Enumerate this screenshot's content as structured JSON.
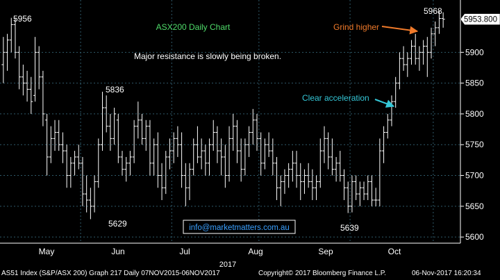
{
  "chart_data": {
    "type": "ohlc",
    "title": "ASX200 Daily Chart",
    "subtitle": "Major resistance is slowly being broken.",
    "ylim": [
      5590,
      5985
    ],
    "yticks": [
      5600,
      5650,
      5700,
      5750,
      5800,
      5850,
      5900
    ],
    "last_price_label": "5953.800",
    "last_price": 5953.8,
    "x_axis_months": [
      "May",
      "Jun",
      "Jul",
      "Aug",
      "Sep",
      "Oct"
    ],
    "x_axis_year": "2017",
    "grid": true,
    "peak_labels": [
      {
        "text": "5956",
        "value": 5956
      },
      {
        "text": "5836",
        "value": 5836
      },
      {
        "text": "5629",
        "value": 5629
      },
      {
        "text": "5639",
        "value": 5639
      },
      {
        "text": "5968",
        "value": 5968
      }
    ],
    "annotations": [
      {
        "text": "Grind higher",
        "color": "#f07a2a"
      },
      {
        "text": "Clear acceleration",
        "color": "#35c8d8"
      }
    ],
    "watermark": "info@marketmatters.com.au",
    "series": [
      {
        "values": [
          [
            5880,
            5925,
            5850,
            5900
          ],
          [
            5900,
            5930,
            5870,
            5920
          ],
          [
            5920,
            5956,
            5900,
            5945
          ],
          [
            5945,
            5956,
            5890,
            5900
          ],
          [
            5900,
            5910,
            5840,
            5860
          ],
          [
            5860,
            5880,
            5830,
            5850
          ],
          [
            5850,
            5870,
            5820,
            5840
          ],
          [
            5840,
            5860,
            5800,
            5820
          ],
          [
            5830,
            5925,
            5820,
            5900
          ],
          [
            5900,
            5910,
            5840,
            5860
          ],
          [
            5860,
            5870,
            5780,
            5800
          ],
          [
            5790,
            5800,
            5700,
            5730
          ],
          [
            5730,
            5780,
            5720,
            5760
          ],
          [
            5760,
            5790,
            5740,
            5770
          ],
          [
            5770,
            5790,
            5740,
            5750
          ],
          [
            5750,
            5770,
            5720,
            5740
          ],
          [
            5740,
            5750,
            5680,
            5700
          ],
          [
            5700,
            5730,
            5680,
            5720
          ],
          [
            5720,
            5740,
            5700,
            5730
          ],
          [
            5730,
            5750,
            5710,
            5720
          ],
          [
            5720,
            5730,
            5650,
            5670
          ],
          [
            5670,
            5700,
            5640,
            5660
          ],
          [
            5660,
            5680,
            5629,
            5650
          ],
          [
            5650,
            5700,
            5640,
            5690
          ],
          [
            5690,
            5760,
            5680,
            5750
          ],
          [
            5750,
            5836,
            5740,
            5810
          ],
          [
            5810,
            5830,
            5770,
            5780
          ],
          [
            5780,
            5800,
            5740,
            5760
          ],
          [
            5760,
            5810,
            5750,
            5800
          ],
          [
            5790,
            5800,
            5720,
            5730
          ],
          [
            5730,
            5740,
            5700,
            5710
          ],
          [
            5710,
            5730,
            5690,
            5720
          ],
          [
            5720,
            5740,
            5700,
            5730
          ],
          [
            5730,
            5790,
            5720,
            5780
          ],
          [
            5780,
            5820,
            5760,
            5790
          ],
          [
            5790,
            5800,
            5750,
            5760
          ],
          [
            5760,
            5790,
            5740,
            5780
          ],
          [
            5780,
            5790,
            5700,
            5720
          ],
          [
            5720,
            5760,
            5700,
            5750
          ],
          [
            5750,
            5770,
            5680,
            5700
          ],
          [
            5700,
            5720,
            5660,
            5680
          ],
          [
            5680,
            5740,
            5670,
            5730
          ],
          [
            5730,
            5760,
            5710,
            5740
          ],
          [
            5740,
            5770,
            5720,
            5760
          ],
          [
            5760,
            5780,
            5730,
            5750
          ],
          [
            5750,
            5770,
            5680,
            5700
          ],
          [
            5700,
            5720,
            5650,
            5680
          ],
          [
            5680,
            5720,
            5660,
            5710
          ],
          [
            5710,
            5760,
            5700,
            5750
          ],
          [
            5750,
            5780,
            5720,
            5730
          ],
          [
            5730,
            5760,
            5710,
            5740
          ],
          [
            5740,
            5750,
            5700,
            5720
          ],
          [
            5720,
            5760,
            5700,
            5750
          ],
          [
            5750,
            5790,
            5740,
            5770
          ],
          [
            5770,
            5780,
            5720,
            5740
          ],
          [
            5740,
            5760,
            5700,
            5730
          ],
          [
            5730,
            5750,
            5680,
            5700
          ],
          [
            5700,
            5780,
            5690,
            5760
          ],
          [
            5760,
            5800,
            5740,
            5780
          ],
          [
            5780,
            5790,
            5720,
            5740
          ],
          [
            5740,
            5760,
            5690,
            5710
          ],
          [
            5710,
            5760,
            5700,
            5750
          ],
          [
            5750,
            5780,
            5730,
            5770
          ],
          [
            5770,
            5808,
            5750,
            5790
          ],
          [
            5790,
            5800,
            5740,
            5760
          ],
          [
            5760,
            5770,
            5700,
            5720
          ],
          [
            5720,
            5760,
            5710,
            5750
          ],
          [
            5750,
            5770,
            5730,
            5740
          ],
          [
            5740,
            5760,
            5700,
            5720
          ],
          [
            5720,
            5730,
            5660,
            5680
          ],
          [
            5680,
            5700,
            5650,
            5690
          ],
          [
            5690,
            5710,
            5670,
            5700
          ],
          [
            5700,
            5720,
            5680,
            5710
          ],
          [
            5710,
            5740,
            5690,
            5720
          ],
          [
            5720,
            5740,
            5680,
            5700
          ],
          [
            5700,
            5720,
            5660,
            5690
          ],
          [
            5690,
            5710,
            5670,
            5700
          ],
          [
            5700,
            5720,
            5680,
            5690
          ],
          [
            5690,
            5710,
            5660,
            5680
          ],
          [
            5680,
            5700,
            5660,
            5690
          ],
          [
            5690,
            5760,
            5680,
            5740
          ],
          [
            5740,
            5780,
            5720,
            5760
          ],
          [
            5760,
            5770,
            5710,
            5730
          ],
          [
            5730,
            5760,
            5700,
            5710
          ],
          [
            5710,
            5730,
            5690,
            5720
          ],
          [
            5720,
            5740,
            5690,
            5700
          ],
          [
            5700,
            5710,
            5660,
            5680
          ],
          [
            5680,
            5690,
            5639,
            5650
          ],
          [
            5650,
            5700,
            5640,
            5690
          ],
          [
            5690,
            5700,
            5660,
            5670
          ],
          [
            5670,
            5690,
            5650,
            5680
          ],
          [
            5680,
            5690,
            5660,
            5670
          ],
          [
            5670,
            5700,
            5660,
            5690
          ],
          [
            5690,
            5700,
            5650,
            5660
          ],
          [
            5660,
            5680,
            5650,
            5660
          ],
          [
            5660,
            5760,
            5650,
            5740
          ],
          [
            5740,
            5780,
            5720,
            5770
          ],
          [
            5770,
            5800,
            5760,
            5790
          ],
          [
            5790,
            5830,
            5780,
            5820
          ],
          [
            5820,
            5860,
            5810,
            5850
          ],
          [
            5850,
            5900,
            5840,
            5890
          ],
          [
            5890,
            5910,
            5870,
            5880
          ],
          [
            5880,
            5900,
            5860,
            5890
          ],
          [
            5890,
            5920,
            5880,
            5910
          ],
          [
            5910,
            5930,
            5880,
            5890
          ],
          [
            5890,
            5910,
            5870,
            5900
          ],
          [
            5900,
            5920,
            5880,
            5910
          ],
          [
            5910,
            5925,
            5860,
            5900
          ],
          [
            5900,
            5940,
            5890,
            5930
          ],
          [
            5930,
            5950,
            5910,
            5940
          ],
          [
            5940,
            5968,
            5930,
            5955
          ],
          [
            5955,
            5965,
            5940,
            5953.8
          ]
        ]
      }
    ]
  },
  "footer": {
    "left": "AS51 Index (S&P/ASX 200) Graph 217  Daily 07NOV2015-06NOV2017",
    "center": "Copyright© 2017 Bloomberg Finance L.P.",
    "right": "06-Nov-2017 16:20:34"
  }
}
